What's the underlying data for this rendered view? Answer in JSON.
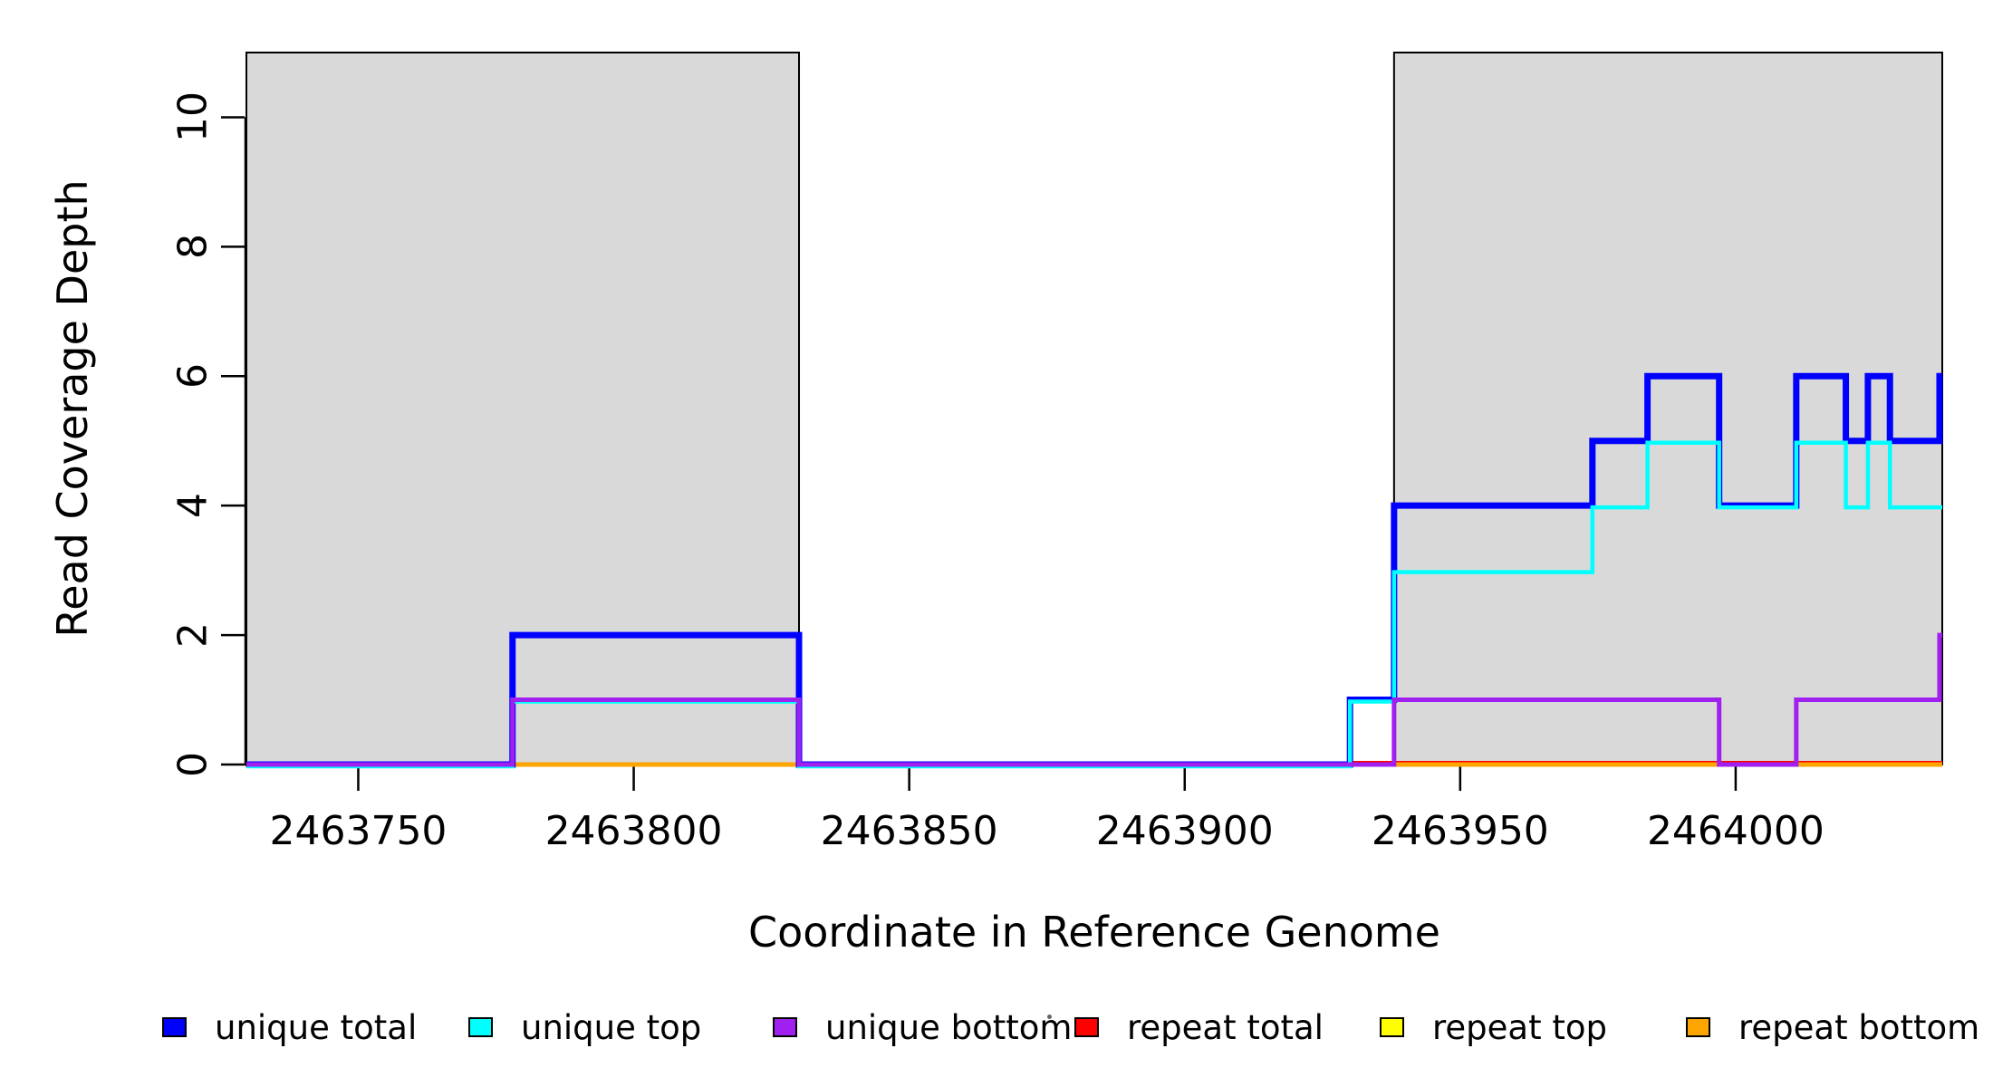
{
  "figure": {
    "x_title": "Coordinate in Reference Genome",
    "y_title": "Read Coverage Depth"
  },
  "chart_data": {
    "type": "line",
    "subtype": "step-coverage-plot",
    "title": "",
    "xlabel": "Coordinate in Reference Genome",
    "ylabel": "Read Coverage Depth",
    "xlim": [
      2463729.7,
      2464037.5
    ],
    "ylim": [
      0,
      11
    ],
    "grid": false,
    "x_ticks": [
      2463750,
      2463800,
      2463850,
      2463900,
      2463950,
      2464000
    ],
    "x_tick_labels": [
      "2463750",
      "2463800",
      "2463850",
      "2463900",
      "2463950",
      "2464000"
    ],
    "y_ticks": [
      0,
      2,
      4,
      6,
      8,
      10
    ],
    "y_tick_labels": [
      "0",
      "2",
      "4",
      "6",
      "8",
      "10"
    ],
    "shaded_regions": {
      "color": "#d9d9d9",
      "border_color": "#000000",
      "intervals": [
        {
          "start": 2463729.7,
          "end": 2463830
        },
        {
          "start": 2463938,
          "end": 2464037.5
        }
      ]
    },
    "series": [
      {
        "name": "repeat top",
        "color": "#ffff00",
        "width": 4,
        "y_offset": 0,
        "steps": [
          [
            2463729.7,
            0
          ]
        ]
      },
      {
        "name": "repeat total",
        "color": "#ff0000",
        "width": 4,
        "y_offset": -2,
        "steps": [
          [
            2463930,
            0
          ]
        ]
      },
      {
        "name": "repeat bottom",
        "color": "#ffa500",
        "width": 5,
        "y_offset": 0,
        "steps": [
          [
            2463729.7,
            0
          ]
        ]
      },
      {
        "name": "unique total",
        "color": "#0000ff",
        "width": 7,
        "y_offset": 0,
        "steps": [
          [
            2463729.7,
            0
          ],
          [
            2463778,
            2
          ],
          [
            2463830,
            0
          ],
          [
            2463930,
            1
          ],
          [
            2463938,
            4
          ],
          [
            2463974,
            5
          ],
          [
            2463984,
            6
          ],
          [
            2463997,
            4
          ],
          [
            2464011,
            6
          ],
          [
            2464020,
            5
          ],
          [
            2464024,
            6
          ],
          [
            2464028,
            5
          ],
          [
            2464037,
            6
          ]
        ]
      },
      {
        "name": "unique top",
        "color": "#00ffff",
        "width": 4.5,
        "y_offset": 2,
        "steps": [
          [
            2463729.7,
            0
          ],
          [
            2463778,
            1
          ],
          [
            2463830,
            0
          ],
          [
            2463930,
            1
          ],
          [
            2463938,
            3
          ],
          [
            2463974,
            4
          ],
          [
            2463984,
            5
          ],
          [
            2463997,
            4
          ],
          [
            2464011,
            5
          ],
          [
            2464020,
            4
          ],
          [
            2464024,
            5
          ],
          [
            2464028,
            4
          ]
        ]
      },
      {
        "name": "unique bottom",
        "color": "#a020f0",
        "width": 5,
        "y_offset": 0,
        "steps": [
          [
            2463729.7,
            0
          ],
          [
            2463778,
            1
          ],
          [
            2463830,
            0
          ],
          [
            2463938,
            1
          ],
          [
            2463997,
            0
          ],
          [
            2464011,
            1
          ],
          [
            2464037,
            2
          ]
        ]
      }
    ],
    "legend_position": "bottom"
  },
  "legend": {
    "items": [
      {
        "label": "unique total",
        "color": "#0000ff"
      },
      {
        "label": "unique top",
        "color": "#00ffff"
      },
      {
        "label": "unique bottom",
        "color": "#a020f0"
      },
      {
        "label": "repeat total",
        "color": "#ff0000"
      },
      {
        "label": "repeat top",
        "color": "#ffff00"
      },
      {
        "label": "repeat bottom",
        "color": "#ffa500"
      }
    ],
    "separator_dot": "·"
  },
  "axis_color": "#000000"
}
